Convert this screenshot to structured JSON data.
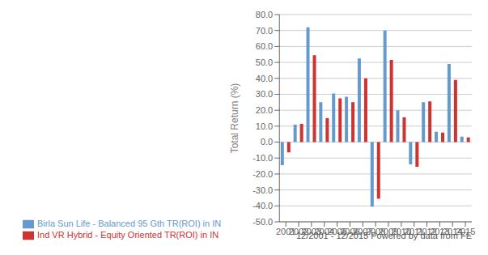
{
  "chart_data": {
    "type": "bar",
    "ylabel": "Total Return (%)",
    "categories": [
      "2001",
      "2002",
      "2003",
      "2004",
      "2005",
      "2006",
      "2007",
      "2008",
      "2009",
      "2010",
      "2011",
      "2012",
      "2013",
      "2014",
      "2015"
    ],
    "series": [
      {
        "name": "Birla Sun Life - Balanced 95 Gth TR(ROI) in IN",
        "color": "#6699CC",
        "values": [
          -14.5,
          11.0,
          72.0,
          25.0,
          30.5,
          28.5,
          52.5,
          -40.5,
          70.0,
          20.0,
          -14.0,
          25.0,
          6.5,
          49.0,
          3.5
        ]
      },
      {
        "name": "Ind VR Hybrid - Equity Oriented TR(ROI) in IN",
        "color": "#CC3333",
        "values": [
          -6.5,
          11.5,
          54.5,
          15.0,
          27.5,
          25.0,
          40.0,
          -35.5,
          51.5,
          15.5,
          -15.5,
          25.5,
          6.0,
          39.0,
          3.0
        ]
      }
    ],
    "ylim": [
      -50.0,
      80.0
    ],
    "yticks": [
      {
        "value": -50,
        "label": "-50.0"
      },
      {
        "value": -40,
        "label": "-40.0"
      },
      {
        "value": -30,
        "label": "-30.0"
      },
      {
        "value": -20,
        "label": "-20.0"
      },
      {
        "value": -10,
        "label": "-10.0"
      },
      {
        "value": 0,
        "label": "0.0"
      },
      {
        "value": 10,
        "label": "10.0"
      },
      {
        "value": 20,
        "label": "20.0"
      },
      {
        "value": 30,
        "label": "30.0"
      },
      {
        "value": 40,
        "label": "40.0"
      },
      {
        "value": 50,
        "label": "50.0"
      },
      {
        "value": 60,
        "label": "60.0"
      },
      {
        "value": 70,
        "label": "70.0"
      },
      {
        "value": 80,
        "label": "80.0"
      }
    ],
    "grid": true,
    "legend": "lower left",
    "annotations": [
      "12/2001 - 12/2015 Powered by data from FE"
    ]
  }
}
